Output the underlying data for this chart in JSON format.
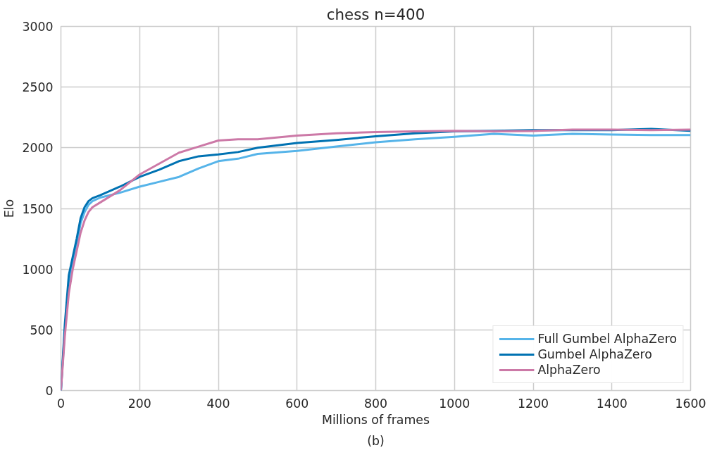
{
  "chart_data": {
    "type": "line",
    "title": "chess n=400",
    "xlabel": "Millions of frames",
    "ylabel": "Elo",
    "annotations": [
      "(b)"
    ],
    "xlim": [
      0,
      1600
    ],
    "xticks": [
      0,
      200,
      400,
      600,
      800,
      1000,
      1200,
      1400,
      1600
    ],
    "ylim": [
      0,
      3000
    ],
    "yticks": [
      0,
      500,
      1000,
      1500,
      2000,
      2500,
      3000
    ],
    "grid": true,
    "legend": "bottom right",
    "marker": "none",
    "line_style": "solid",
    "x": [
      0,
      10,
      20,
      30,
      40,
      50,
      60,
      70,
      80,
      100,
      150,
      200,
      250,
      300,
      350,
      400,
      450,
      500,
      600,
      700,
      800,
      900,
      1000,
      1100,
      1200,
      1300,
      1400,
      1500,
      1600
    ],
    "series": [
      {
        "name": "Full Gumbel AlphaZero",
        "color": "#56b4e9",
        "values": [
          0,
          500,
          850,
          1050,
          1200,
          1380,
          1470,
          1530,
          1560,
          1590,
          1630,
          1680,
          1720,
          1760,
          1830,
          1890,
          1910,
          1950,
          1975,
          2010,
          2045,
          2070,
          2090,
          2115,
          2100,
          2115,
          2110,
          2105,
          2105
        ]
      },
      {
        "name": "Gumbel AlphaZero",
        "color": "#0072b2",
        "values": [
          0,
          550,
          950,
          1100,
          1250,
          1420,
          1510,
          1560,
          1585,
          1610,
          1680,
          1760,
          1820,
          1890,
          1930,
          1945,
          1965,
          2000,
          2040,
          2065,
          2095,
          2120,
          2135,
          2140,
          2145,
          2145,
          2145,
          2155,
          2140
        ]
      },
      {
        "name": "AlphaZero",
        "color": "#cc79a7",
        "values": [
          0,
          450,
          800,
          1000,
          1150,
          1300,
          1400,
          1470,
          1510,
          1550,
          1650,
          1780,
          1870,
          1960,
          2010,
          2060,
          2070,
          2070,
          2100,
          2120,
          2130,
          2135,
          2140,
          2135,
          2138,
          2150,
          2150,
          2145,
          2150
        ]
      }
    ]
  }
}
